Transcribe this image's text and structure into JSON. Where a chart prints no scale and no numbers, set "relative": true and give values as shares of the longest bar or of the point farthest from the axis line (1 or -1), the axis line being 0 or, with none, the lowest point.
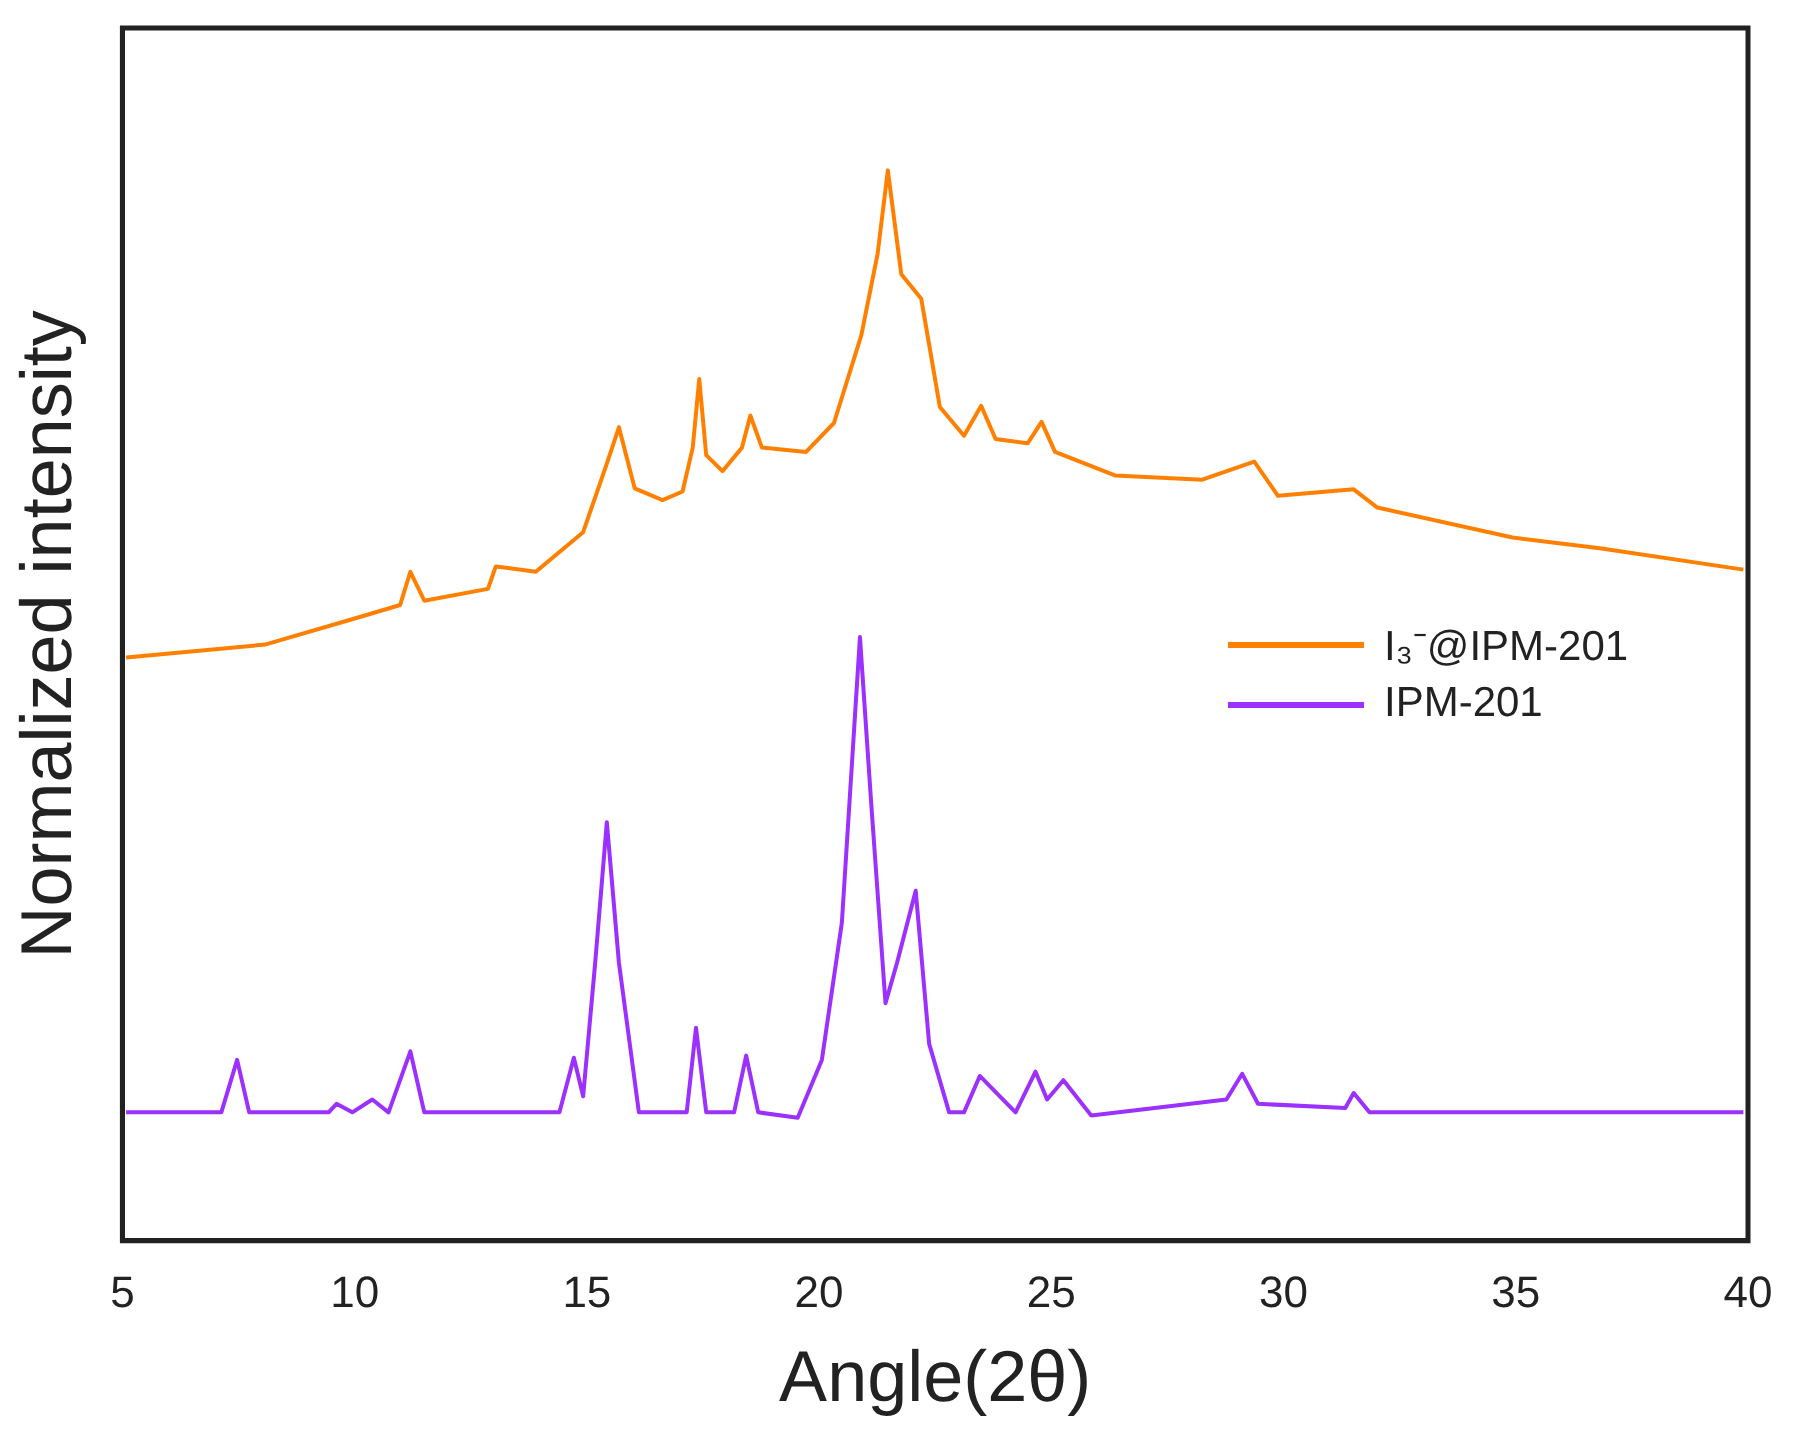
{
  "chart_data": {
    "type": "line",
    "relative": true,
    "xlabel": "Angle(2θ)",
    "ylabel": "Normalized intensity",
    "xlim": [
      5,
      40
    ],
    "xticks": [
      5,
      10,
      15,
      20,
      25,
      30,
      35,
      40
    ],
    "legend": "right",
    "grid": false,
    "marker": "none",
    "line_style": "solid",
    "series": [
      {
        "name": "I₃⁻@IPM-201",
        "color": "#ff8000",
        "x": [
          5.08,
          8.07,
          10.13,
          10.98,
          11.2,
          11.5,
          12.87,
          13.04,
          13.9,
          14.92,
          15.43,
          15.69,
          16.03,
          16.63,
          17.06,
          17.28,
          17.42,
          17.57,
          17.92,
          18.34,
          18.52,
          18.77,
          19.72,
          20.32,
          20.91,
          21.26,
          21.48,
          21.77,
          22.2,
          22.6,
          23.12,
          23.49,
          23.8,
          24.49,
          24.79,
          25.08,
          26.37,
          28.25,
          29.37,
          29.88,
          31.51,
          32.02,
          34.93,
          36.81,
          39.9
        ],
        "values": [
          0.545,
          0.557,
          0.583,
          0.594,
          0.625,
          0.598,
          0.609,
          0.63,
          0.625,
          0.662,
          0.726,
          0.76,
          0.703,
          0.692,
          0.7,
          0.741,
          0.805,
          0.734,
          0.719,
          0.741,
          0.771,
          0.741,
          0.737,
          0.764,
          0.846,
          0.922,
          1.0,
          0.903,
          0.88,
          0.779,
          0.752,
          0.78,
          0.749,
          0.745,
          0.765,
          0.737,
          0.715,
          0.711,
          0.728,
          0.696,
          0.702,
          0.685,
          0.657,
          0.647,
          0.627
        ]
      },
      {
        "name": "IPM-201",
        "color": "#9b30ff",
        "x": [
          5.08,
          7.13,
          7.47,
          7.73,
          9.44,
          9.61,
          9.95,
          10.38,
          10.73,
          11.2,
          11.5,
          14.41,
          14.72,
          14.92,
          15.18,
          15.43,
          15.69,
          16.12,
          17.15,
          17.35,
          17.57,
          18.17,
          18.43,
          18.69,
          19.54,
          20.06,
          20.49,
          20.88,
          21.12,
          21.43,
          21.68,
          22.08,
          22.37,
          22.8,
          23.12,
          23.46,
          24.23,
          24.66,
          24.91,
          25.26,
          25.86,
          28.77,
          29.11,
          29.45,
          31.33,
          31.51,
          31.85,
          39.9
        ],
        "values": [
          0.12,
          0.12,
          0.169,
          0.12,
          0.12,
          0.128,
          0.12,
          0.132,
          0.12,
          0.177,
          0.12,
          0.12,
          0.171,
          0.135,
          0.26,
          0.391,
          0.26,
          0.12,
          0.12,
          0.199,
          0.12,
          0.12,
          0.173,
          0.12,
          0.115,
          0.169,
          0.297,
          0.564,
          0.41,
          0.222,
          0.26,
          0.327,
          0.184,
          0.12,
          0.12,
          0.154,
          0.12,
          0.158,
          0.132,
          0.15,
          0.117,
          0.132,
          0.156,
          0.128,
          0.124,
          0.138,
          0.12,
          0.12
        ]
      }
    ]
  }
}
